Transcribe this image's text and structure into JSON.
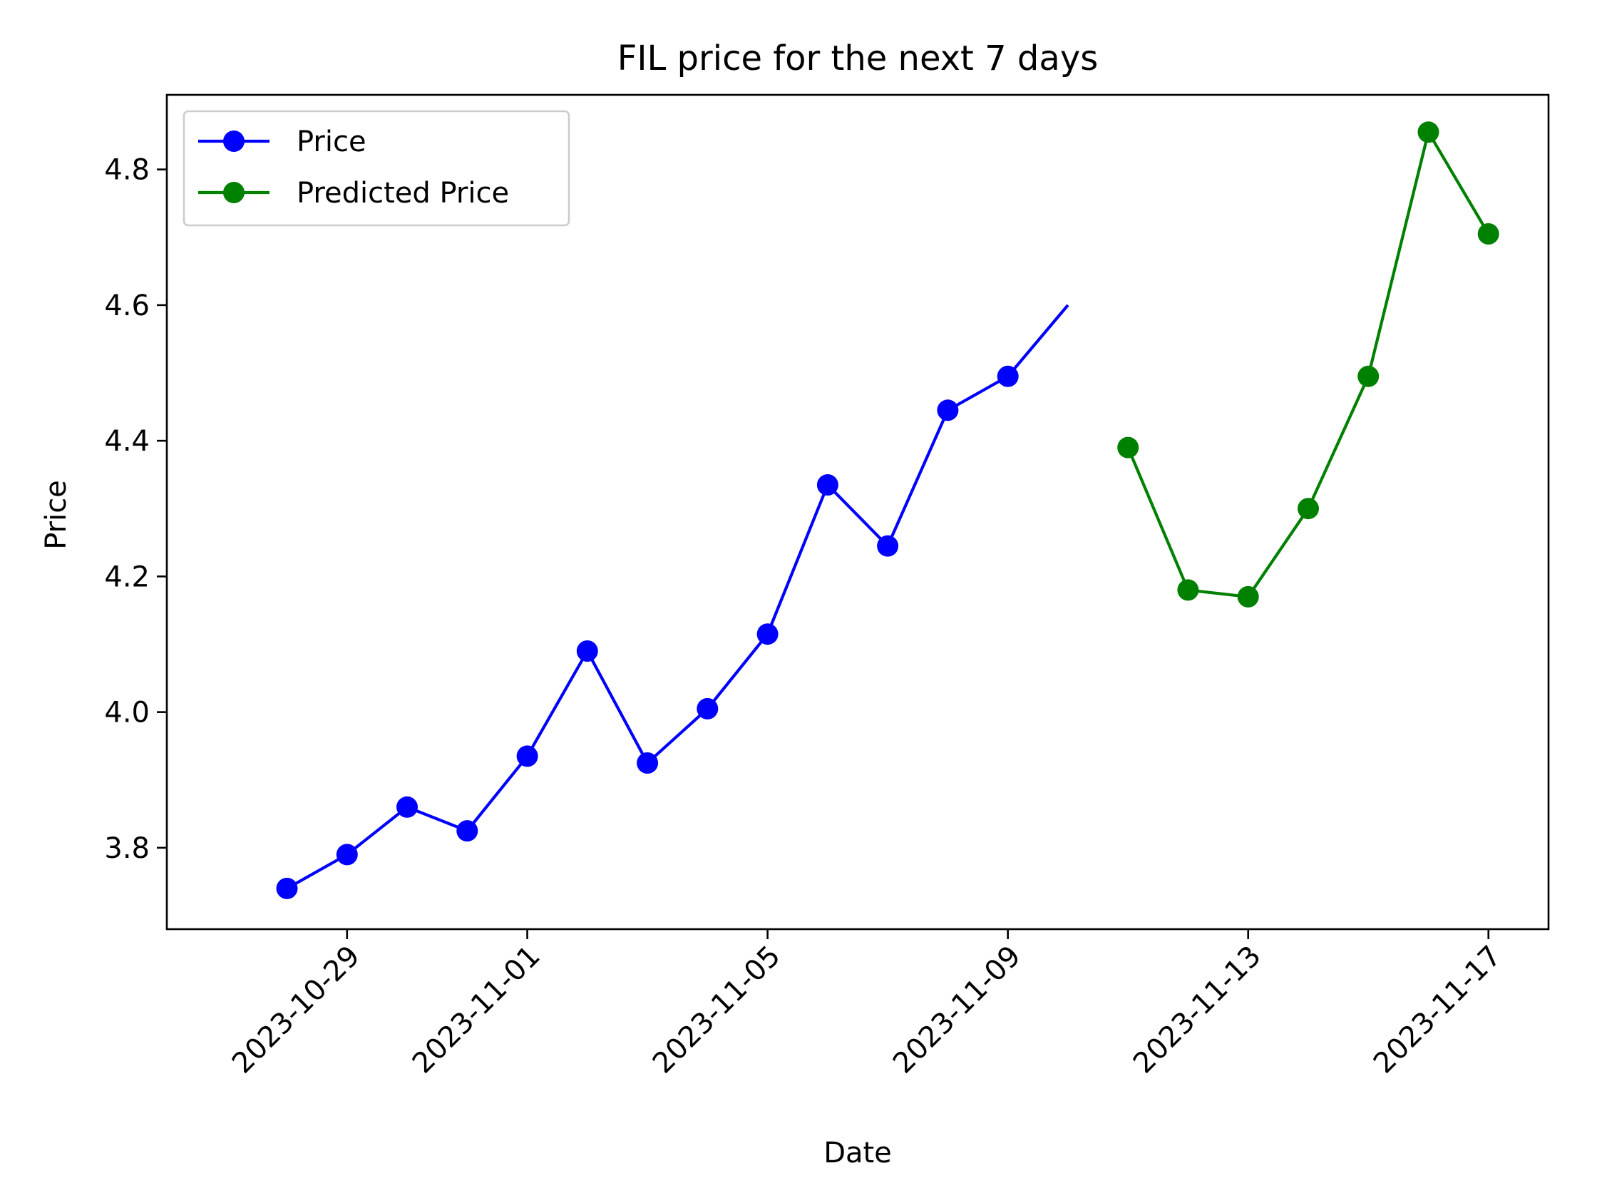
{
  "chart_data": {
    "type": "line",
    "title": "FIL price for the next 7 days",
    "xlabel": "Date",
    "ylabel": "Price",
    "x_ticks": [
      "2023-10-29",
      "2023-11-01",
      "2023-11-05",
      "2023-11-09",
      "2023-11-13",
      "2023-11-17"
    ],
    "y_ticks": [
      "3.8",
      "4.0",
      "4.2",
      "4.4",
      "4.6",
      "4.8"
    ],
    "xlim": [
      "2023-10-26",
      "2023-11-18"
    ],
    "ylim": [
      3.68,
      4.91
    ],
    "legend_position": "top-left",
    "grid": false,
    "series": [
      {
        "name": "Price",
        "color": "#0000ff",
        "points": [
          {
            "x": "2023-10-28",
            "y": 3.74,
            "marker": true
          },
          {
            "x": "2023-10-29",
            "y": 3.79,
            "marker": true
          },
          {
            "x": "2023-10-30",
            "y": 3.86,
            "marker": true
          },
          {
            "x": "2023-10-31",
            "y": 3.825,
            "marker": true
          },
          {
            "x": "2023-11-01",
            "y": 3.935,
            "marker": true
          },
          {
            "x": "2023-11-02",
            "y": 4.09,
            "marker": true
          },
          {
            "x": "2023-11-03",
            "y": 3.925,
            "marker": true
          },
          {
            "x": "2023-11-04",
            "y": 4.005,
            "marker": true
          },
          {
            "x": "2023-11-05",
            "y": 4.115,
            "marker": true
          },
          {
            "x": "2023-11-06",
            "y": 4.335,
            "marker": true
          },
          {
            "x": "2023-11-07",
            "y": 4.245,
            "marker": true
          },
          {
            "x": "2023-11-08",
            "y": 4.445,
            "marker": true
          },
          {
            "x": "2023-11-09",
            "y": 4.495,
            "marker": true
          },
          {
            "x": "2023-11-10",
            "y": 4.6,
            "marker": false
          }
        ]
      },
      {
        "name": "Predicted Price",
        "color": "#008000",
        "points": [
          {
            "x": "2023-11-11",
            "y": 4.39,
            "marker": true
          },
          {
            "x": "2023-11-12",
            "y": 4.18,
            "marker": true
          },
          {
            "x": "2023-11-13",
            "y": 4.17,
            "marker": true
          },
          {
            "x": "2023-11-14",
            "y": 4.3,
            "marker": true
          },
          {
            "x": "2023-11-15",
            "y": 4.495,
            "marker": true
          },
          {
            "x": "2023-11-16",
            "y": 4.855,
            "marker": true
          },
          {
            "x": "2023-11-17",
            "y": 4.705,
            "marker": true
          }
        ]
      }
    ]
  }
}
